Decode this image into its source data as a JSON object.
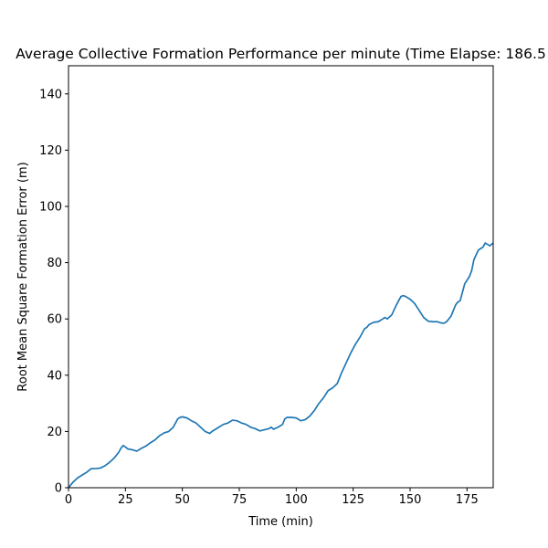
{
  "chart_data": {
    "type": "line",
    "title": "Average Collective Formation Performance per minute (Time Elapse: 186.5",
    "xlabel": "Time (min)",
    "ylabel": "Root Mean Square Formation Error (m)",
    "xlim": [
      0,
      186.5
    ],
    "ylim": [
      0,
      150
    ],
    "xticks": [
      0,
      25,
      50,
      75,
      100,
      125,
      150,
      175
    ],
    "yticks": [
      0,
      20,
      40,
      60,
      80,
      100,
      120,
      140
    ],
    "grid": false,
    "legend": "none",
    "line_color": "#1f77b4",
    "series": [
      {
        "x": [
          0,
          2,
          4,
          6,
          8,
          10,
          12,
          14,
          16,
          18,
          20,
          22,
          23,
          24,
          25,
          26,
          28,
          30,
          32,
          34,
          36,
          38,
          40,
          42,
          44,
          46,
          48,
          49,
          50,
          52,
          54,
          56,
          58,
          60,
          62,
          63,
          64,
          66,
          68,
          70,
          72,
          74,
          76,
          78,
          80,
          82,
          84,
          86,
          88,
          89,
          90,
          92,
          94,
          95,
          96,
          98,
          100,
          102,
          104,
          106,
          108,
          110,
          112,
          114,
          116,
          118,
          120,
          122,
          124,
          126,
          128,
          130,
          131,
          132,
          134,
          136,
          138,
          139,
          140,
          142,
          144,
          146,
          147,
          148,
          150,
          152,
          154,
          156,
          158,
          160,
          162,
          164,
          165,
          166,
          168,
          170,
          171,
          172,
          174,
          176,
          177,
          178,
          180,
          182,
          183,
          184,
          185,
          186.5
        ],
        "y": [
          0,
          2,
          3.5,
          4.5,
          5.5,
          6.8,
          6.8,
          7,
          7.8,
          9,
          10.5,
          12.5,
          14,
          15,
          14.5,
          13.8,
          13.5,
          13,
          14,
          14.8,
          16,
          17,
          18.5,
          19.5,
          20,
          21.5,
          24.5,
          25,
          25.2,
          24.8,
          23.8,
          23,
          21.5,
          20,
          19.3,
          20,
          20.5,
          21.5,
          22.5,
          23,
          24,
          23.8,
          23,
          22.5,
          21.5,
          21,
          20.2,
          20.6,
          21,
          21.5,
          20.8,
          21.5,
          22.5,
          24.5,
          25,
          25,
          24.8,
          23.8,
          24.2,
          25.5,
          27.5,
          30,
          32,
          34.5,
          35.5,
          37,
          41,
          44.5,
          48,
          51,
          53.5,
          56.5,
          57,
          58,
          58.8,
          59,
          60,
          60.5,
          60,
          61.5,
          65,
          68,
          68.3,
          68,
          67,
          65.5,
          63,
          60.5,
          59.2,
          59,
          59,
          58.5,
          58.5,
          59,
          61,
          65,
          66,
          66.5,
          72.5,
          75,
          77,
          81,
          84.5,
          85.5,
          87,
          86.5,
          86,
          87
        ]
      }
    ]
  }
}
